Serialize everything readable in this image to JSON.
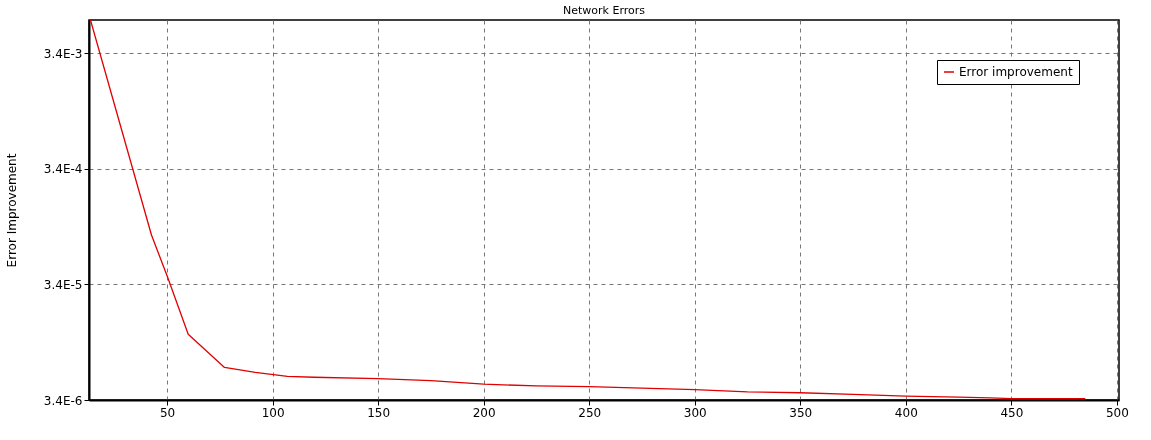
{
  "chart_data": {
    "type": "line",
    "title": "Network Errors",
    "ylabel": "Error Improvement",
    "x": [
      13.7,
      42.6,
      50.3,
      60,
      77.2,
      91.8,
      107,
      119.5,
      150,
      175,
      200,
      225,
      250,
      275,
      300,
      325,
      350,
      375,
      400,
      425,
      440,
      450,
      485
    ],
    "series": [
      {
        "name": "Error improvement",
        "color": "#e00000",
        "values": [
          0.0066,
          9.1e-05,
          3.9e-05,
          1.26e-05,
          6.5e-06,
          5.9e-06,
          5.45e-06,
          5.35e-06,
          5.2e-06,
          5e-06,
          4.66e-06,
          4.5e-06,
          4.43e-06,
          4.3e-06,
          4.18e-06,
          4e-06,
          3.93e-06,
          3.8e-06,
          3.67e-06,
          3.6e-06,
          3.55e-06,
          3.5e-06,
          3.5e-06
        ]
      }
    ],
    "xlim": [
      13,
      501
    ],
    "xticks": [
      50,
      100,
      150,
      200,
      250,
      300,
      350,
      400,
      450,
      500
    ],
    "ylim": [
      3.4e-06,
      0.0066
    ],
    "yticks": [
      {
        "value": 3.4e-06,
        "label": "3.4E-6"
      },
      {
        "value": 3.4e-05,
        "label": "3.4E-5"
      },
      {
        "value": 0.00034,
        "label": "3.4E-4"
      },
      {
        "value": 0.0034,
        "label": "3.4E-3"
      }
    ],
    "log": "y",
    "grid": true,
    "legend": "top right",
    "marker": "none",
    "line_style": "solid"
  }
}
